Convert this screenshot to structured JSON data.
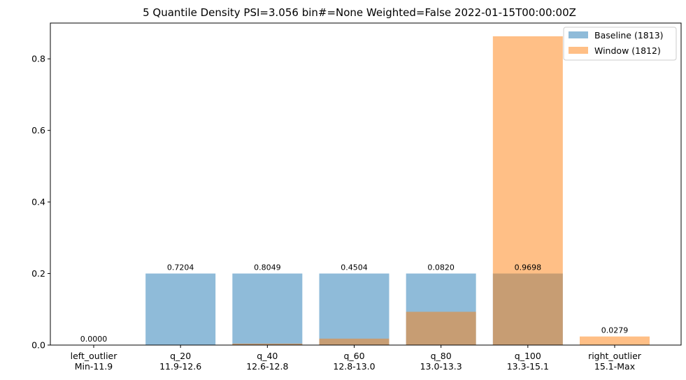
{
  "chart_data": {
    "type": "bar",
    "title": "5 Quantile Density PSI=3.056 bin#=None Weighted=False 2022-01-15T00:00:00Z",
    "xlabel": "",
    "ylabel": "",
    "ylim": [
      0,
      0.9
    ],
    "yticks": [
      "0.0",
      "0.2",
      "0.4",
      "0.6",
      "0.8"
    ],
    "categories": [
      [
        "left_outlier",
        "Min-11.9"
      ],
      [
        "q_20",
        "11.9-12.6"
      ],
      [
        "q_40",
        "12.6-12.8"
      ],
      [
        "q_60",
        "12.8-13.0"
      ],
      [
        "q_80",
        "13.0-13.3"
      ],
      [
        "q_100",
        "13.3-15.1"
      ],
      [
        "right_outlier",
        "15.1-Max"
      ]
    ],
    "series": [
      {
        "name": "Baseline (1813)",
        "color": "#1f77b4",
        "opacity": 0.5,
        "values": [
          0.0,
          0.2,
          0.2,
          0.2,
          0.2,
          0.2,
          0.0
        ]
      },
      {
        "name": "Window (1812)",
        "color": "#ff7f0e",
        "opacity": 0.5,
        "values": [
          0.0,
          0.0,
          0.004,
          0.018,
          0.093,
          0.863,
          0.024
        ]
      }
    ],
    "bar_labels": [
      "0.0000",
      "0.7204",
      "0.8049",
      "0.4504",
      "0.0820",
      "0.9698",
      "0.0279"
    ],
    "grid": false,
    "legend_position": "top-right"
  }
}
